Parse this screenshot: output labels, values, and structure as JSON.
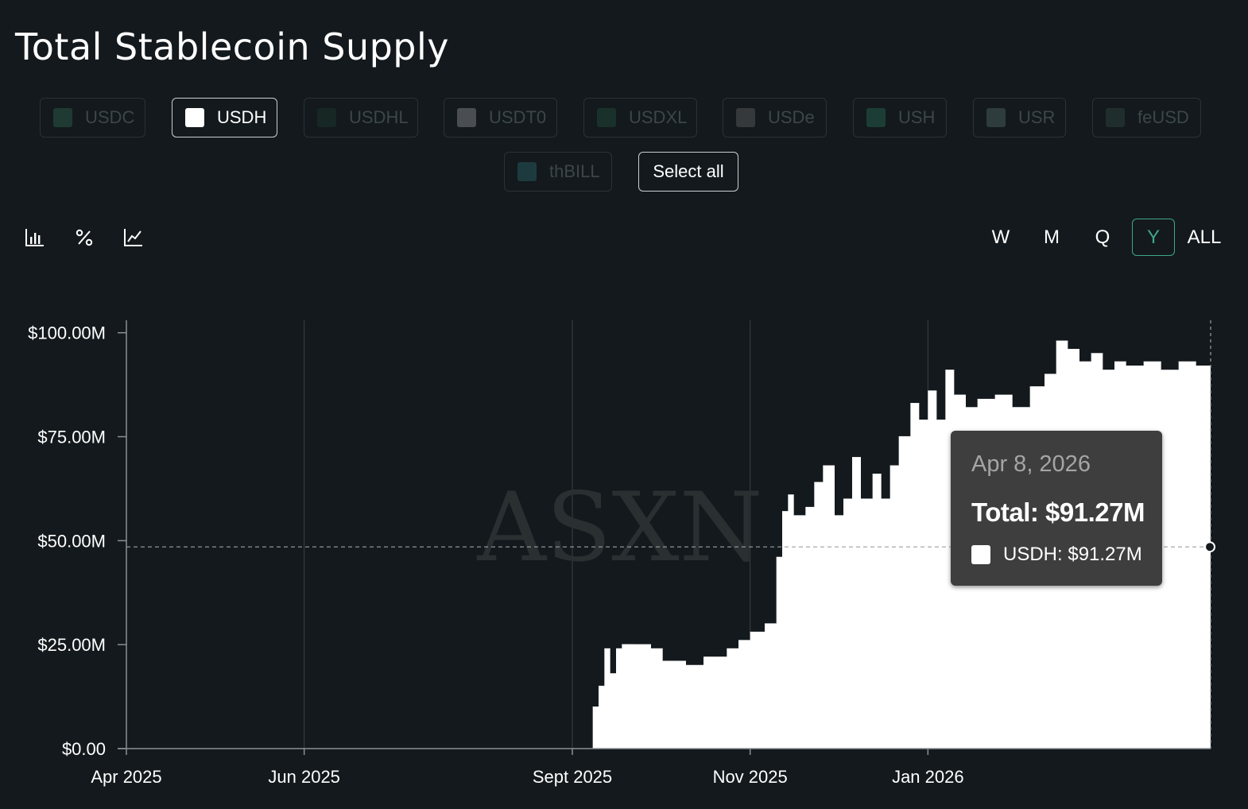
{
  "title": "Total Stablecoin Supply",
  "filters": [
    {
      "label": "USDC",
      "color": "#1e3a33",
      "active": false
    },
    {
      "label": "USDH",
      "color": "#ffffff",
      "active": true
    },
    {
      "label": "USDHL",
      "color": "#172723",
      "active": false
    },
    {
      "label": "USDT0",
      "color": "#4a4e52",
      "active": false
    },
    {
      "label": "USDXL",
      "color": "#1a312b",
      "active": false
    },
    {
      "label": "USDe",
      "color": "#36393c",
      "active": false
    },
    {
      "label": "USH",
      "color": "#1c3d35",
      "active": false
    },
    {
      "label": "USR",
      "color": "#2e3c3e",
      "active": false
    },
    {
      "label": "feUSD",
      "color": "#1f2e2c",
      "active": false
    },
    {
      "label": "thBILL",
      "color": "#1d3b3e",
      "active": false
    }
  ],
  "select_all_label": "Select all",
  "view_modes": [
    {
      "icon": "bar-chart-icon",
      "active": true
    },
    {
      "icon": "percent-icon",
      "active": false
    },
    {
      "icon": "line-chart-icon",
      "active": false
    }
  ],
  "ranges": [
    {
      "label": "W",
      "active": false
    },
    {
      "label": "M",
      "active": false
    },
    {
      "label": "Q",
      "active": false
    },
    {
      "label": "Y",
      "active": true
    },
    {
      "label": "ALL",
      "active": false
    }
  ],
  "watermark": "ASXN",
  "colors": {
    "accent": "#2a5749",
    "accent_text": "#3fa78b",
    "series": "#ffffff",
    "background": "#13191d"
  },
  "tooltip": {
    "date": "Apr 8, 2026",
    "total": "Total: $91.27M",
    "series_line": "USDH: $91.27M"
  },
  "chart_data": {
    "type": "area",
    "title": "Total Stablecoin Supply",
    "y_ticks": [
      "$0.00",
      "$25.00M",
      "$50.00M",
      "$75.00M",
      "$100.00M"
    ],
    "y_tick_values": [
      0,
      25,
      50,
      75,
      100
    ],
    "ylim": [
      0,
      103
    ],
    "x_ticks": [
      "Apr 2025",
      "Jun 2025",
      "Sept 2025",
      "Nov 2025",
      "Jan 2026"
    ],
    "x_tick_dates": [
      "2025-04-01",
      "2025-06-01",
      "2025-09-01",
      "2025-11-01",
      "2026-01-01"
    ],
    "x_range": [
      "2025-04-01",
      "2026-04-08"
    ],
    "grid": "vertical",
    "crosshair_value": 48.5,
    "series": [
      {
        "name": "USDH",
        "color": "#ffffff",
        "x": [
          "2025-09-08",
          "2025-09-10",
          "2025-09-12",
          "2025-09-14",
          "2025-09-16",
          "2025-09-18",
          "2025-09-22",
          "2025-09-28",
          "2025-10-02",
          "2025-10-06",
          "2025-10-10",
          "2025-10-16",
          "2025-10-20",
          "2025-10-24",
          "2025-10-28",
          "2025-11-01",
          "2025-11-06",
          "2025-11-10",
          "2025-11-12",
          "2025-11-14",
          "2025-11-16",
          "2025-11-20",
          "2025-11-23",
          "2025-11-26",
          "2025-11-30",
          "2025-12-03",
          "2025-12-06",
          "2025-12-09",
          "2025-12-13",
          "2025-12-16",
          "2025-12-19",
          "2025-12-22",
          "2025-12-26",
          "2025-12-29",
          "2026-01-01",
          "2026-01-04",
          "2026-01-07",
          "2026-01-10",
          "2026-01-14",
          "2026-01-18",
          "2026-01-24",
          "2026-01-30",
          "2026-02-05",
          "2026-02-10",
          "2026-02-14",
          "2026-02-18",
          "2026-02-22",
          "2026-02-26",
          "2026-03-02",
          "2026-03-06",
          "2026-03-10",
          "2026-03-16",
          "2026-03-22",
          "2026-03-28",
          "2026-04-03",
          "2026-04-08"
        ],
        "values": [
          10,
          15,
          24,
          18,
          24,
          25,
          25,
          24,
          21,
          21,
          20,
          22,
          22,
          24,
          26,
          28,
          30,
          46,
          57,
          61,
          56,
          58,
          64,
          68,
          56,
          60,
          70,
          60,
          66,
          60,
          68,
          75,
          83,
          79,
          86,
          79,
          91,
          85,
          82,
          84,
          85,
          82,
          87,
          90,
          98,
          96,
          93,
          95,
          91,
          93,
          92,
          93,
          91,
          93,
          92,
          91.27
        ]
      }
    ]
  }
}
